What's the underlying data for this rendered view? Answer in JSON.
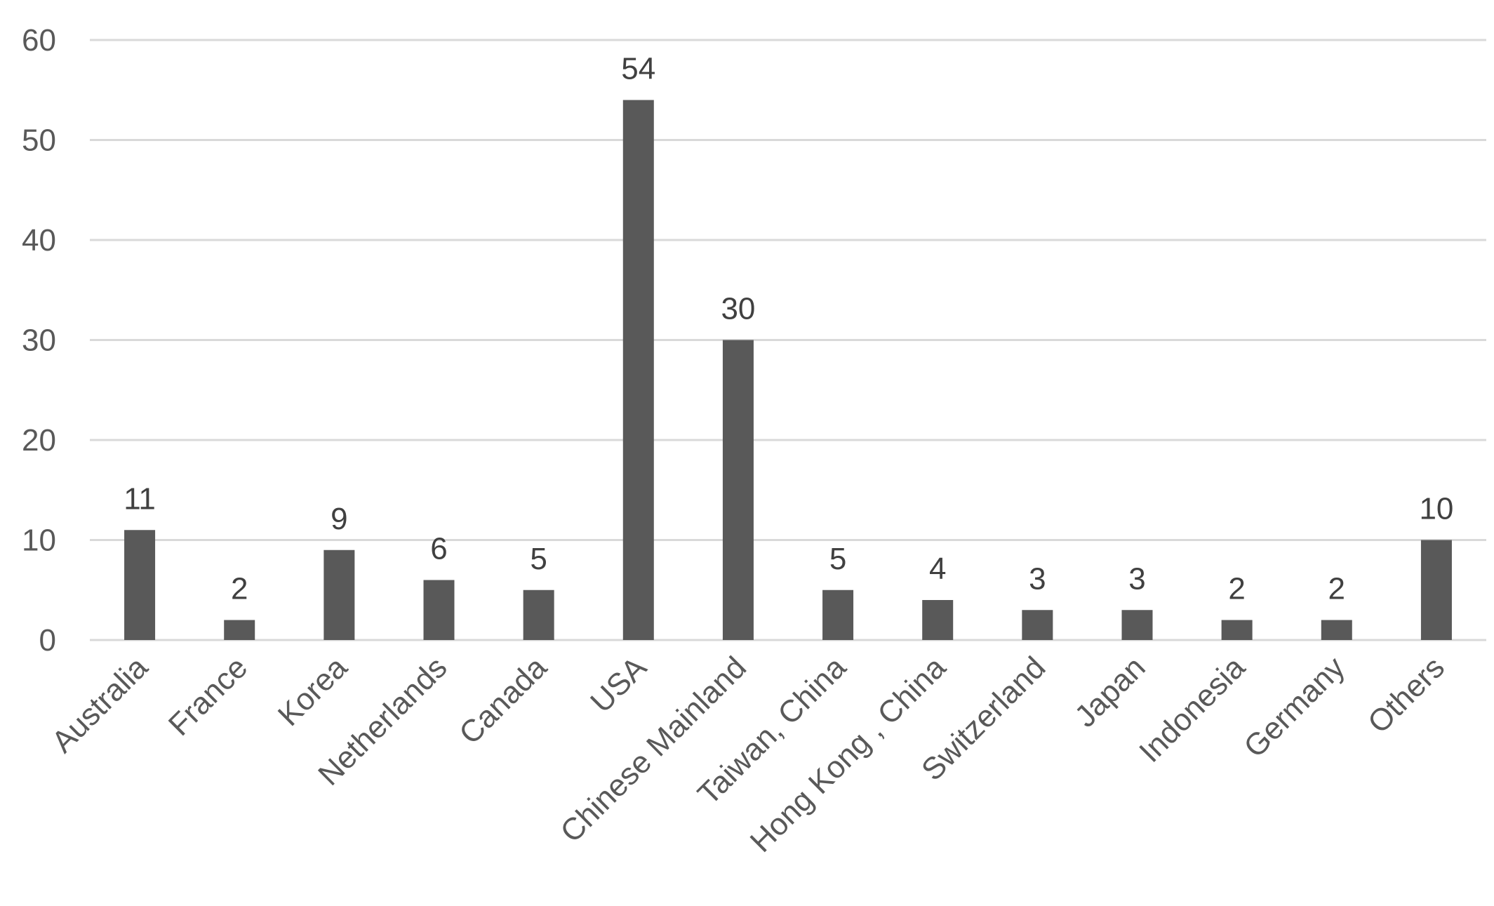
{
  "chart_data": {
    "type": "bar",
    "categories": [
      "Australia",
      "France",
      "Korea",
      "Netherlands",
      "Canada",
      "USA",
      "Chinese Mainland",
      "Taiwan, China",
      "Hong Kong , China",
      "Switzerland",
      "Japan",
      "Indonesia",
      "Germany",
      "Others"
    ],
    "values": [
      11,
      2,
      9,
      6,
      5,
      54,
      30,
      5,
      4,
      3,
      3,
      2,
      2,
      10
    ],
    "title": "",
    "xlabel": "",
    "ylabel": "",
    "ylim": [
      0,
      60
    ],
    "yticks": [
      0,
      10,
      20,
      30,
      40,
      50,
      60
    ],
    "grid": true,
    "legend": "none",
    "data_labels": true,
    "bar_color": "#595959"
  }
}
